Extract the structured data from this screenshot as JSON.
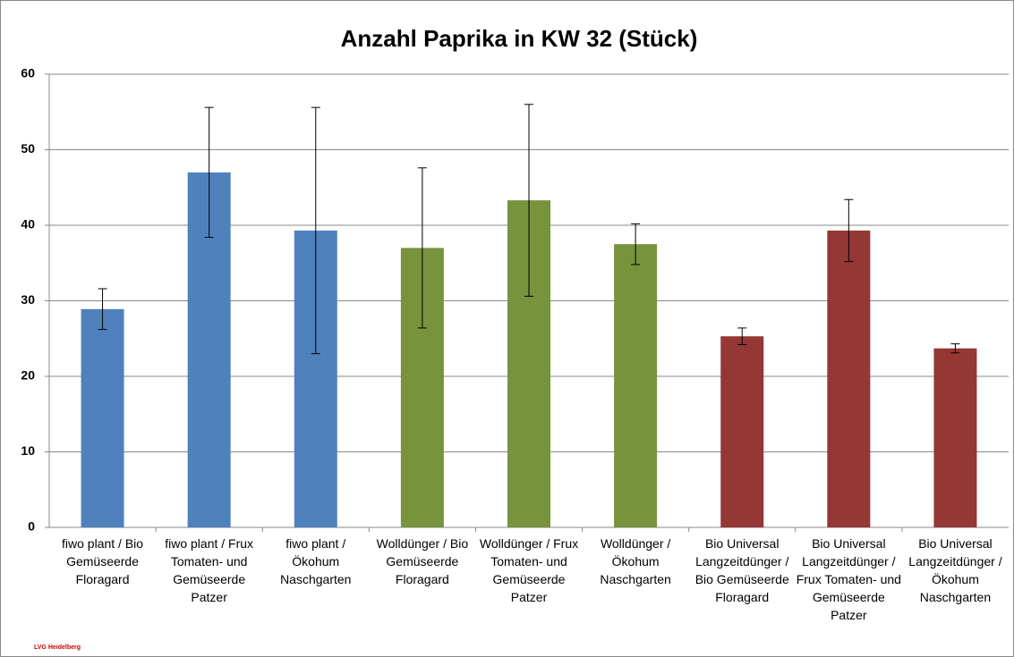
{
  "chart_data": {
    "type": "bar",
    "title": "Anzahl Paprika in KW 32 (Stück)",
    "categories": [
      "fiwo plant / Bio Gemüseerde Floragard",
      "fiwo plant / Frux Tomaten- und Gemüseerde Patzer",
      "fiwo plant / Ökohum Naschgarten",
      "Wolldünger / Bio Gemüseerde Floragard",
      "Wolldünger / Frux Tomaten- und Gemüseerde Patzer",
      "Wolldünger / Ökohum Naschgarten",
      "Bio Universal Langzeitdünger / Bio Gemüseerde Floragard",
      "Bio Universal Langzeitdünger / Frux Tomaten- und Gemüseerde Patzer",
      "Bio Universal Langzeitdünger / Ökohum Naschgarten"
    ],
    "values": [
      28.9,
      47.0,
      39.3,
      37.0,
      43.3,
      37.5,
      25.3,
      39.3,
      23.7
    ],
    "errors": [
      2.7,
      8.6,
      16.3,
      10.6,
      12.7,
      2.7,
      1.1,
      4.1,
      0.6
    ],
    "colors": [
      "#4f81bd",
      "#4f81bd",
      "#4f81bd",
      "#77933c",
      "#77933c",
      "#77933c",
      "#953735",
      "#953735",
      "#953735"
    ],
    "ylim": [
      0,
      60
    ],
    "yticks": [
      0,
      10,
      20,
      30,
      40,
      50,
      60
    ],
    "grid": true,
    "logo": "LVG Heidelberg"
  }
}
